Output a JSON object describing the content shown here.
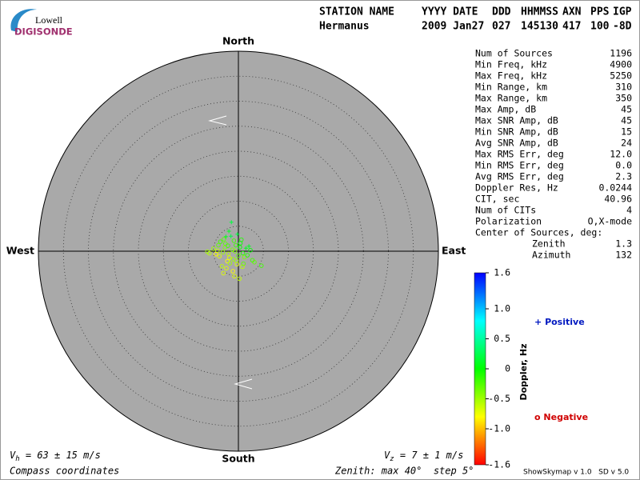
{
  "header": {
    "logo_top": "Lowell",
    "logo_bottom": "DIGISONDE",
    "labels": [
      "STATION NAME",
      "YYYY DATE",
      "DDD",
      "HHMMSS",
      "AXN",
      "PPS",
      "IGP"
    ],
    "values": [
      "Hermanus",
      "2009 Jan27",
      "027",
      "145130",
      "417",
      "100",
      "-8D"
    ]
  },
  "stats": [
    {
      "label": "Num of Sources",
      "value": "1196"
    },
    {
      "label": "Min Freq, kHz",
      "value": "4900"
    },
    {
      "label": "Max Freq, kHz",
      "value": "5250"
    },
    {
      "label": "Min Range, km",
      "value": "310"
    },
    {
      "label": "Max Range, km",
      "value": "350"
    },
    {
      "label": "Max Amp, dB",
      "value": "45"
    },
    {
      "label": "Max SNR Amp, dB",
      "value": "45"
    },
    {
      "label": "Min SNR Amp, dB",
      "value": "15"
    },
    {
      "label": "Avg SNR Amp, dB",
      "value": "24"
    },
    {
      "label": "Max RMS Err, deg",
      "value": "12.0"
    },
    {
      "label": "Min RMS Err, deg",
      "value": "0.0"
    },
    {
      "label": "Avg RMS Err, deg",
      "value": "2.3"
    },
    {
      "label": "Doppler Res, Hz",
      "value": "0.0244"
    },
    {
      "label": "CIT, sec",
      "value": "40.96"
    },
    {
      "label": "Num of CITs",
      "value": "4"
    },
    {
      "label": "Polarization",
      "value": "O,X-mode"
    }
  ],
  "center": {
    "title": "Center of Sources, deg:",
    "rows": [
      {
        "label": "Zenith",
        "value": "1.3"
      },
      {
        "label": "Azimuth",
        "value": "132"
      }
    ]
  },
  "footer": {
    "vh": {
      "symbol": "V",
      "sub": "h",
      "text": " = 63 ± 15 m/s"
    },
    "vz": {
      "symbol": "V",
      "sub": "z",
      "text": " = 7 ± 1 m/s"
    },
    "coords": "Compass coordinates",
    "zenith": "Zenith: max 40°  step 5°",
    "version": "ShowSkymap v 1.0   SD v 5.0"
  },
  "chart_data": {
    "type": "skymap",
    "directions": {
      "north": "North",
      "south": "South",
      "east": "East",
      "west": "West"
    },
    "rlim": [
      0,
      40
    ],
    "rticks": [
      5,
      10,
      15,
      20,
      25,
      30,
      35
    ],
    "x": [
      -1.2,
      -2.0,
      -0.5,
      0.3,
      -3.1,
      -2.6,
      -1.8,
      0.9,
      1.5,
      -0.9,
      -4.2,
      -3.8,
      -2.2,
      -1.0,
      0.0,
      0.6,
      2.1,
      2.8,
      -1.5,
      -2.9,
      -0.3,
      1.2,
      -5.0,
      -4.5,
      -3.3,
      -2.4,
      -1.7,
      -0.7,
      0.4,
      1.8,
      3.2,
      4.6,
      -1.9,
      -0.2,
      -3.6,
      -2.7,
      -1.1,
      0.8,
      -5.8,
      -4.0,
      -2.5,
      -0.8,
      1.0,
      2.4,
      -6.2,
      -1.4,
      -3.0,
      -0.4,
      0.2,
      -2.1
    ],
    "y": [
      0.3,
      -0.5,
      1.2,
      0.8,
      -0.2,
      1.5,
      -1.3,
      -0.4,
      0.6,
      2.1,
      0.1,
      -1.0,
      -2.0,
      -1.6,
      -0.9,
      2.3,
      1.0,
      -1.8,
      3.0,
      2.4,
      -2.6,
      -1.2,
      0.5,
      -0.6,
      -3.0,
      -3.4,
      -2.4,
      0.0,
      1.6,
      -0.8,
      -2.2,
      -2.9,
      4.0,
      3.4,
      1.9,
      0.7,
      -4.0,
      -3.1,
      -0.4,
      1.2,
      2.9,
      -5.0,
      -2.5,
      0.2,
      -0.1,
      5.8,
      -4.4,
      -1.9,
      -5.5,
      1.1
    ],
    "doppler": [
      -0.4,
      -0.6,
      -0.2,
      0.0,
      -0.5,
      -0.3,
      -0.7,
      -0.1,
      0.1,
      -0.2,
      -0.6,
      -0.7,
      -0.8,
      -0.5,
      -0.3,
      -0.1,
      0.1,
      -0.2,
      0.2,
      -0.3,
      -0.7,
      -0.4,
      -0.5,
      -0.8,
      -0.6,
      -0.7,
      -0.5,
      -0.4,
      0.0,
      -0.1,
      -0.3,
      -0.2,
      0.1,
      0.2,
      -0.2,
      -0.4,
      -0.8,
      -0.6,
      -0.6,
      -0.3,
      0.1,
      -0.7,
      -0.3,
      0.0,
      -0.5,
      0.2,
      -0.7,
      -0.5,
      -0.6,
      -0.2
    ],
    "colorbar": {
      "label": "Doppler, Hz",
      "clim": [
        -1.6,
        1.6
      ],
      "ticks": [
        1.6,
        {
          "value": 1,
          "label": "1.0"
        },
        0.5,
        0,
        -0.5,
        {
          "value": -1,
          "label": "-1.0"
        },
        -1.6
      ]
    },
    "legend": {
      "positive_symbol": "+",
      "positive": "Positive",
      "negative_symbol": "o",
      "negative": "Negative"
    }
  }
}
